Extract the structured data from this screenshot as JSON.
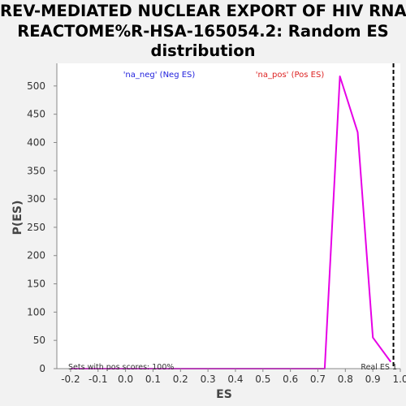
{
  "chart_data": {
    "type": "line",
    "title_lines": [
      "REV-MEDIATED NUCLEAR EXPORT OF HIV RNA%",
      "REACTOME%R-HSA-165054.2: Random ES",
      "distribution"
    ],
    "xlabel": "ES",
    "ylabel": "P(ES)",
    "xlim": [
      -0.25,
      1.0
    ],
    "ylim": [
      0,
      540
    ],
    "xticks": [
      -0.2,
      -0.1,
      0.0,
      0.1,
      0.2,
      0.3,
      0.4,
      0.5,
      0.6,
      0.7,
      0.8,
      0.9,
      1.0
    ],
    "yticks": [
      0,
      50,
      100,
      150,
      200,
      250,
      300,
      350,
      400,
      450,
      500
    ],
    "grid": false,
    "series": [
      {
        "name": "'na_pos' (Pos ES)",
        "color": "#e600e6",
        "x": [
          -0.2,
          0.0,
          0.2,
          0.4,
          0.6,
          0.725,
          0.78,
          0.845,
          0.9,
          0.965
        ],
        "y": [
          0,
          0,
          0,
          0,
          0,
          0,
          517,
          418,
          55,
          12
        ]
      }
    ],
    "legend": [
      {
        "label": "'na_neg' (Neg ES)",
        "color": "#2222dd"
      },
      {
        "label": "'na_pos' (Pos ES)",
        "color": "#dd2222"
      }
    ],
    "real_es": {
      "x": 0.975,
      "label": "Real ES 1",
      "color": "#000000"
    },
    "annotation": "Sets with pos scores: 100%"
  }
}
